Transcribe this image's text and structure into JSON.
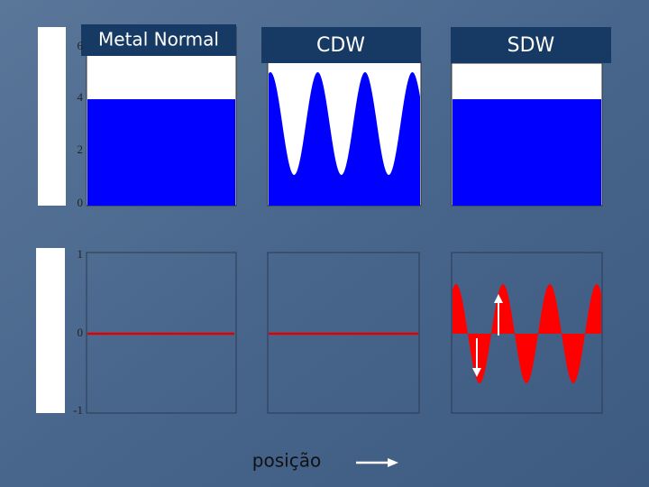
{
  "panels": [
    {
      "title": "Metal Normal",
      "ticks": [
        "6",
        "4",
        "2",
        "0"
      ]
    },
    {
      "title": "CDW"
    },
    {
      "title": "SDW"
    },
    {
      "ticks": [
        "1",
        "0",
        "-1"
      ]
    }
  ],
  "footer": {
    "label": "posição"
  }
}
